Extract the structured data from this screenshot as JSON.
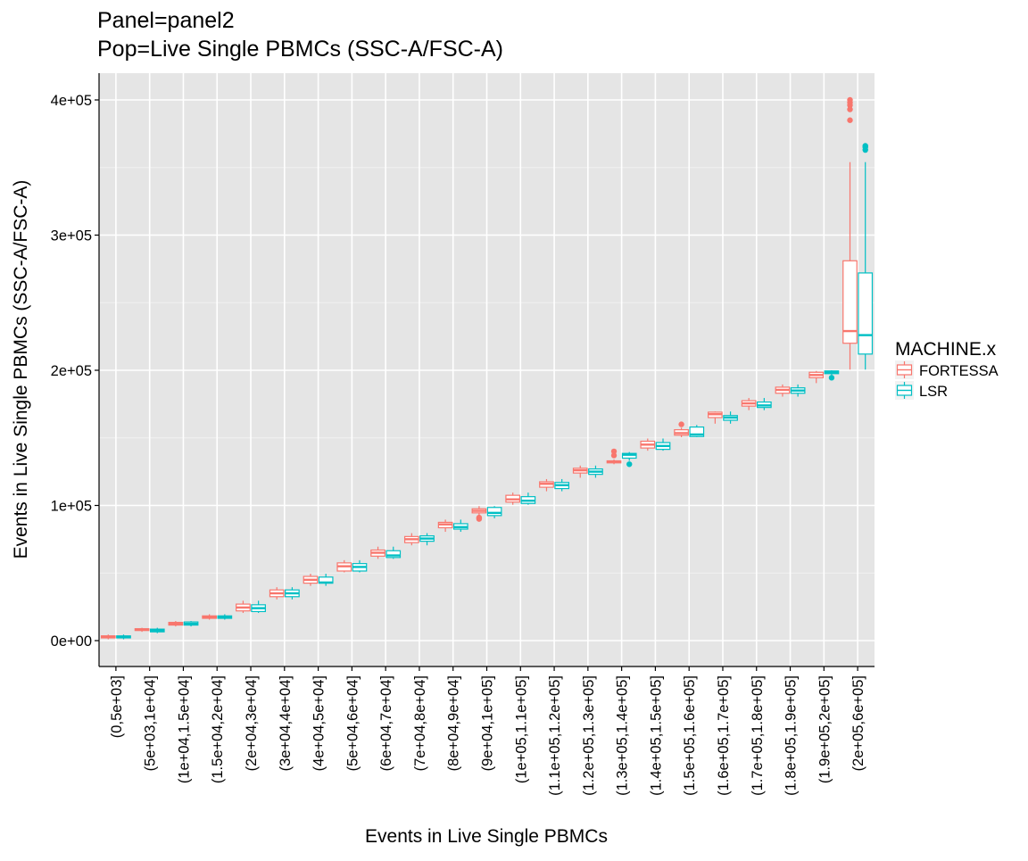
{
  "chart_data": {
    "type": "boxplot",
    "title": "Panel=panel2",
    "subtitle": "Pop=Live Single PBMCs (SSC-A/FSC-A)",
    "xlabel": "Events in Live Single PBMCs",
    "ylabel": "Events in Live Single PBMCs (SSC-A/FSC-A)",
    "ylim": [
      -20000,
      420000
    ],
    "y_ticks": [
      {
        "value": 0,
        "label": "0e+00"
      },
      {
        "value": 100000,
        "label": "1e+05"
      },
      {
        "value": 200000,
        "label": "2e+05"
      },
      {
        "value": 300000,
        "label": "3e+05"
      },
      {
        "value": 400000,
        "label": "4e+05"
      }
    ],
    "grid": true,
    "legend": {
      "title": "MACHINE.x",
      "placement": "right",
      "entries": [
        {
          "name": "FORTESSA",
          "color": "#F8766D"
        },
        {
          "name": "LSR",
          "color": "#00BFC4"
        }
      ]
    },
    "categories": [
      "(0,5e+03]",
      "(5e+03,1e+04]",
      "(1e+04,1.5e+04]",
      "(1.5e+04,2e+04]",
      "(2e+04,3e+04]",
      "(3e+04,4e+04]",
      "(4e+04,5e+04]",
      "(5e+04,6e+04]",
      "(6e+04,7e+04]",
      "(7e+04,8e+04]",
      "(8e+04,9e+04]",
      "(9e+04,1e+05]",
      "(1e+05,1.1e+05]",
      "(1.1e+05,1.2e+05]",
      "(1.2e+05,1.3e+05]",
      "(1.3e+05,1.4e+05]",
      "(1.4e+05,1.5e+05]",
      "(1.5e+05,1.6e+05]",
      "(1.6e+05,1.7e+05]",
      "(1.7e+05,1.8e+05]",
      "(1.8e+05,1.9e+05]",
      "(1.9e+05,2e+05]",
      "(2e+05,6e+05]"
    ],
    "series": [
      {
        "name": "FORTESSA",
        "color": "#F8766D",
        "boxes": [
          {
            "min": 1000,
            "q1": 2000,
            "median": 3000,
            "q3": 3500,
            "max": 4500,
            "outliers": []
          },
          {
            "min": 6500,
            "q1": 7500,
            "median": 8000,
            "q3": 8800,
            "max": 9500,
            "outliers": []
          },
          {
            "min": 10500,
            "q1": 11500,
            "median": 12500,
            "q3": 13500,
            "max": 14500,
            "outliers": []
          },
          {
            "min": 15500,
            "q1": 16500,
            "median": 17500,
            "q3": 18300,
            "max": 19500,
            "outliers": []
          },
          {
            "min": 20500,
            "q1": 22000,
            "median": 24500,
            "q3": 27000,
            "max": 29500,
            "outliers": []
          },
          {
            "min": 30500,
            "q1": 32500,
            "median": 35000,
            "q3": 37500,
            "max": 39500,
            "outliers": []
          },
          {
            "min": 40500,
            "q1": 42500,
            "median": 45000,
            "q3": 47500,
            "max": 49500,
            "outliers": []
          },
          {
            "min": 50500,
            "q1": 51500,
            "median": 55000,
            "q3": 57500,
            "max": 59500,
            "outliers": []
          },
          {
            "min": 60500,
            "q1": 62500,
            "median": 65000,
            "q3": 67000,
            "max": 69500,
            "outliers": []
          },
          {
            "min": 70500,
            "q1": 72500,
            "median": 75000,
            "q3": 77000,
            "max": 79500,
            "outliers": []
          },
          {
            "min": 80500,
            "q1": 83500,
            "median": 86000,
            "q3": 87500,
            "max": 89500,
            "outliers": []
          },
          {
            "min": 92000,
            "q1": 94500,
            "median": 96000,
            "q3": 97500,
            "max": 99500,
            "outliers": [
              90000,
              91000
            ]
          },
          {
            "min": 100500,
            "q1": 102500,
            "median": 104500,
            "q3": 107500,
            "max": 109500,
            "outliers": []
          },
          {
            "min": 110500,
            "q1": 113500,
            "median": 116000,
            "q3": 117500,
            "max": 119500,
            "outliers": []
          },
          {
            "min": 120500,
            "q1": 124000,
            "median": 126000,
            "q3": 127500,
            "max": 129500,
            "outliers": []
          },
          {
            "min": 130500,
            "q1": 131500,
            "median": 132500,
            "q3": 133000,
            "max": 134000,
            "outliers": [
              137000,
              140000
            ]
          },
          {
            "min": 140500,
            "q1": 142500,
            "median": 145000,
            "q3": 147500,
            "max": 149500,
            "outliers": []
          },
          {
            "min": 150500,
            "q1": 152000,
            "median": 153500,
            "q3": 156000,
            "max": 157500,
            "outliers": [
              160000
            ]
          },
          {
            "min": 160500,
            "q1": 165000,
            "median": 167500,
            "q3": 169000,
            "max": 169500,
            "outliers": []
          },
          {
            "min": 170500,
            "q1": 173500,
            "median": 175500,
            "q3": 177500,
            "max": 179500,
            "outliers": []
          },
          {
            "min": 180500,
            "q1": 183000,
            "median": 185500,
            "q3": 187500,
            "max": 189500,
            "outliers": []
          },
          {
            "min": 190500,
            "q1": 194500,
            "median": 196500,
            "q3": 198500,
            "max": 199500,
            "outliers": []
          },
          {
            "min": 200500,
            "q1": 220000,
            "median": 229000,
            "q3": 281000,
            "max": 354000,
            "outliers": [
              385000,
              393000,
              396000,
              398000,
              400000
            ]
          }
        ]
      },
      {
        "name": "LSR",
        "color": "#00BFC4",
        "boxes": [
          {
            "min": 1000,
            "q1": 2000,
            "median": 2800,
            "q3": 3500,
            "max": 4500,
            "outliers": []
          },
          {
            "min": 5500,
            "q1": 6500,
            "median": 7500,
            "q3": 8500,
            "max": 9500,
            "outliers": []
          },
          {
            "min": 10500,
            "q1": 11500,
            "median": 12500,
            "q3": 13800,
            "max": 14500,
            "outliers": []
          },
          {
            "min": 15500,
            "q1": 16500,
            "median": 17500,
            "q3": 18300,
            "max": 19500,
            "outliers": []
          },
          {
            "min": 20500,
            "q1": 21500,
            "median": 24000,
            "q3": 26500,
            "max": 29500,
            "outliers": []
          },
          {
            "min": 30500,
            "q1": 32500,
            "median": 35000,
            "q3": 37500,
            "max": 39500,
            "outliers": []
          },
          {
            "min": 40500,
            "q1": 42500,
            "median": 43000,
            "q3": 47000,
            "max": 49500,
            "outliers": []
          },
          {
            "min": 50500,
            "q1": 51500,
            "median": 54500,
            "q3": 57000,
            "max": 59500,
            "outliers": []
          },
          {
            "min": 60500,
            "q1": 61500,
            "median": 63000,
            "q3": 66500,
            "max": 69500,
            "outliers": []
          },
          {
            "min": 70500,
            "q1": 73500,
            "median": 75500,
            "q3": 77500,
            "max": 79500,
            "outliers": []
          },
          {
            "min": 80500,
            "q1": 82500,
            "median": 84000,
            "q3": 86500,
            "max": 89500,
            "outliers": []
          },
          {
            "min": 90500,
            "q1": 92500,
            "median": 94500,
            "q3": 98500,
            "max": 99500,
            "outliers": []
          },
          {
            "min": 100500,
            "q1": 101500,
            "median": 103500,
            "q3": 106500,
            "max": 109500,
            "outliers": []
          },
          {
            "min": 110500,
            "q1": 112500,
            "median": 115000,
            "q3": 117000,
            "max": 119500,
            "outliers": []
          },
          {
            "min": 120500,
            "q1": 123000,
            "median": 125000,
            "q3": 127000,
            "max": 129500,
            "outliers": []
          },
          {
            "min": 133000,
            "q1": 135000,
            "median": 137500,
            "q3": 138500,
            "max": 139500,
            "outliers": [
              130500
            ]
          },
          {
            "min": 140500,
            "q1": 141500,
            "median": 144000,
            "q3": 146500,
            "max": 149500,
            "outliers": []
          },
          {
            "min": 150500,
            "q1": 151000,
            "median": 152500,
            "q3": 158000,
            "max": 159500,
            "outliers": []
          },
          {
            "min": 160500,
            "q1": 163000,
            "median": 165000,
            "q3": 166500,
            "max": 169500,
            "outliers": []
          },
          {
            "min": 170500,
            "q1": 172500,
            "median": 174000,
            "q3": 176500,
            "max": 179500,
            "outliers": []
          },
          {
            "min": 180500,
            "q1": 183000,
            "median": 185000,
            "q3": 187000,
            "max": 189500,
            "outliers": []
          },
          {
            "min": 196500,
            "q1": 197500,
            "median": 198500,
            "q3": 199500,
            "max": 200000,
            "outliers": [
              194500
            ]
          },
          {
            "min": 200500,
            "q1": 212000,
            "median": 226000,
            "q3": 272000,
            "max": 354000,
            "outliers": [
              363000,
              365000,
              366000
            ]
          }
        ]
      }
    ]
  }
}
